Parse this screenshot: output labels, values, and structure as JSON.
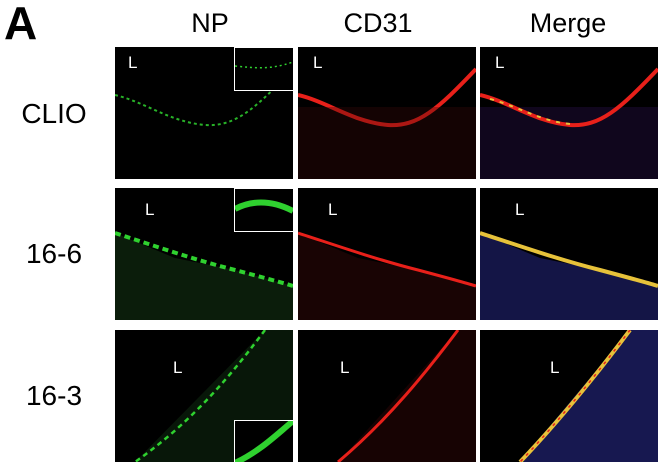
{
  "panel_letter": "A",
  "columns": [
    "NP",
    "CD31",
    "Merge"
  ],
  "rows": [
    "CLIO",
    "16-6",
    "16-3"
  ],
  "lumen_label": "L",
  "colors": {
    "np_channel": "#2fd12f",
    "cd31_channel": "#e8201a",
    "merge_overlay": "#e7c23a",
    "nuclei": "#3a3cc8"
  }
}
